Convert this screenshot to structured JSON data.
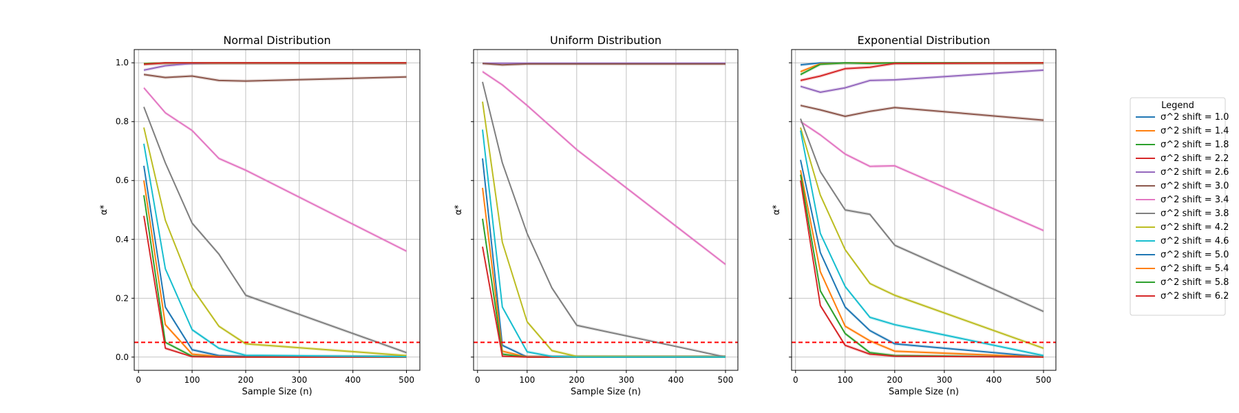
{
  "chart_data": [
    {
      "type": "line",
      "title": "Normal Distribution",
      "xlabel": "Sample Size (n)",
      "ylabel": "α*",
      "xlim": [
        -8,
        525
      ],
      "ylim": [
        -0.045,
        1.045
      ],
      "xticks": [
        0,
        100,
        200,
        300,
        400,
        500
      ],
      "yticks": [
        0.0,
        0.2,
        0.4,
        0.6,
        0.8,
        1.0
      ],
      "xtick_labels": [
        "0",
        "100",
        "200",
        "300",
        "400",
        "500"
      ],
      "ytick_labels": [
        "0.0",
        "0.2",
        "0.4",
        "0.6",
        "0.8",
        "1.0"
      ],
      "grid": true,
      "reference_line": {
        "y": 0.05,
        "color": "#ff0000",
        "style": "dashed"
      },
      "x": [
        10,
        50,
        100,
        150,
        200,
        500
      ],
      "series": [
        {
          "color": "#1f77b4",
          "values": [
            0.65,
            0.17,
            0.025,
            0.005,
            0.002,
            0.0
          ]
        },
        {
          "color": "#ff7f0e",
          "values": [
            0.6,
            0.11,
            0.01,
            0.002,
            0.0,
            0.0
          ]
        },
        {
          "color": "#2ca02c",
          "values": [
            0.55,
            0.05,
            0.003,
            0.0,
            0.0,
            0.0
          ]
        },
        {
          "color": "#d62728",
          "values": [
            0.48,
            0.03,
            0.001,
            0.0,
            0.0,
            0.0
          ]
        },
        {
          "color": "#9467bd",
          "values": [
            0.975,
            0.99,
            0.998,
            1.0,
            1.0,
            1.0
          ]
        },
        {
          "color": "#8c564b",
          "values": [
            0.96,
            0.95,
            0.955,
            0.94,
            0.938,
            0.952
          ]
        },
        {
          "color": "#e377c2",
          "values": [
            0.915,
            0.83,
            0.77,
            0.675,
            0.635,
            0.36
          ]
        },
        {
          "color": "#7f7f7f",
          "values": [
            0.85,
            0.66,
            0.455,
            0.35,
            0.21,
            0.015
          ]
        },
        {
          "color": "#bcbd22",
          "values": [
            0.78,
            0.465,
            0.235,
            0.105,
            0.045,
            0.005
          ]
        },
        {
          "color": "#17becf",
          "values": [
            0.725,
            0.3,
            0.093,
            0.03,
            0.006,
            0.001
          ]
        },
        {
          "color": "#1f77b4",
          "values": [
            0.998,
            1.0,
            1.0,
            1.0,
            1.0,
            1.0
          ]
        },
        {
          "color": "#ff7f0e",
          "values": [
            0.998,
            1.0,
            1.0,
            1.0,
            1.0,
            1.0
          ]
        },
        {
          "color": "#2ca02c",
          "values": [
            0.997,
            1.0,
            1.0,
            1.0,
            1.0,
            1.0
          ]
        },
        {
          "color": "#d62728",
          "values": [
            0.995,
            1.0,
            1.0,
            1.0,
            1.0,
            1.0
          ]
        }
      ]
    },
    {
      "type": "line",
      "title": "Uniform Distribution",
      "xlabel": "Sample Size (n)",
      "ylabel": "α*",
      "xlim": [
        -8,
        525
      ],
      "ylim": [
        -0.045,
        1.045
      ],
      "xticks": [
        0,
        100,
        200,
        300,
        400,
        500
      ],
      "yticks": [
        0.0,
        0.2,
        0.4,
        0.6,
        0.8,
        1.0
      ],
      "xtick_labels": [
        "0",
        "100",
        "200",
        "300",
        "400",
        "500"
      ],
      "ytick_labels": [],
      "grid": true,
      "reference_line": {
        "y": 0.05,
        "color": "#ff0000",
        "style": "dashed"
      },
      "x": [
        10,
        50,
        100,
        150,
        200,
        500
      ],
      "series": [
        {
          "color": "#1f77b4",
          "values": [
            0.675,
            0.04,
            0.0,
            0.0,
            0.0,
            0.0
          ]
        },
        {
          "color": "#ff7f0e",
          "values": [
            0.575,
            0.02,
            0.0,
            0.0,
            0.0,
            0.0
          ]
        },
        {
          "color": "#2ca02c",
          "values": [
            0.47,
            0.01,
            0.0,
            0.0,
            0.0,
            0.0
          ]
        },
        {
          "color": "#d62728",
          "values": [
            0.375,
            0.003,
            0.0,
            0.0,
            0.0,
            0.0
          ]
        },
        {
          "color": "#9467bd",
          "values": [
            0.999,
            0.999,
            0.999,
            0.999,
            0.999,
            0.999
          ]
        },
        {
          "color": "#8c564b",
          "values": [
            0.998,
            0.993,
            0.996,
            0.996,
            0.996,
            0.996
          ]
        },
        {
          "color": "#e377c2",
          "values": [
            0.97,
            0.925,
            0.855,
            0.78,
            0.705,
            0.315
          ]
        },
        {
          "color": "#7f7f7f",
          "values": [
            0.935,
            0.66,
            0.42,
            0.235,
            0.108,
            0.0
          ]
        },
        {
          "color": "#bcbd22",
          "values": [
            0.868,
            0.39,
            0.12,
            0.022,
            0.002,
            0.0
          ]
        },
        {
          "color": "#17becf",
          "values": [
            0.773,
            0.17,
            0.018,
            0.002,
            0.0,
            0.0
          ]
        }
      ]
    },
    {
      "type": "line",
      "title": "Exponential Distribution",
      "xlabel": "Sample Size (n)",
      "ylabel": "α*",
      "xlim": [
        -8,
        525
      ],
      "ylim": [
        -0.045,
        1.045
      ],
      "xticks": [
        0,
        100,
        200,
        300,
        400,
        500
      ],
      "yticks": [
        0.0,
        0.2,
        0.4,
        0.6,
        0.8,
        1.0
      ],
      "xtick_labels": [
        "0",
        "100",
        "200",
        "300",
        "400",
        "500"
      ],
      "ytick_labels": [],
      "grid": true,
      "reference_line": {
        "y": 0.05,
        "color": "#ff0000",
        "style": "dashed"
      },
      "x": [
        10,
        50,
        100,
        150,
        200,
        500
      ],
      "series": [
        {
          "color": "#1f77b4",
          "values": [
            0.67,
            0.355,
            0.17,
            0.09,
            0.045,
            0.0
          ]
        },
        {
          "color": "#ff7f0e",
          "values": [
            0.635,
            0.29,
            0.105,
            0.055,
            0.02,
            0.0
          ]
        },
        {
          "color": "#2ca02c",
          "values": [
            0.62,
            0.225,
            0.08,
            0.015,
            0.005,
            0.0
          ]
        },
        {
          "color": "#d62728",
          "values": [
            0.6,
            0.175,
            0.04,
            0.01,
            0.003,
            0.0
          ]
        },
        {
          "color": "#9467bd",
          "values": [
            0.92,
            0.9,
            0.915,
            0.94,
            0.942,
            0.975
          ]
        },
        {
          "color": "#8c564b",
          "values": [
            0.855,
            0.84,
            0.818,
            0.835,
            0.848,
            0.805
          ]
        },
        {
          "color": "#e377c2",
          "values": [
            0.8,
            0.755,
            0.69,
            0.648,
            0.65,
            0.43
          ]
        },
        {
          "color": "#7f7f7f",
          "values": [
            0.81,
            0.63,
            0.5,
            0.485,
            0.38,
            0.155
          ]
        },
        {
          "color": "#bcbd22",
          "values": [
            0.78,
            0.55,
            0.365,
            0.25,
            0.21,
            0.03
          ]
        },
        {
          "color": "#17becf",
          "values": [
            0.77,
            0.42,
            0.24,
            0.135,
            0.11,
            0.005
          ]
        },
        {
          "color": "#1f77b4",
          "values": [
            0.993,
            1.0,
            1.0,
            1.0,
            1.0,
            1.0
          ]
        },
        {
          "color": "#ff7f0e",
          "values": [
            0.97,
            0.997,
            1.0,
            1.0,
            1.0,
            1.0
          ]
        },
        {
          "color": "#2ca02c",
          "values": [
            0.96,
            0.995,
            1.0,
            0.998,
            1.0,
            1.0
          ]
        },
        {
          "color": "#d62728",
          "values": [
            0.94,
            0.955,
            0.98,
            0.985,
            0.998,
            1.0
          ]
        }
      ]
    }
  ],
  "legend": {
    "title": "Legend",
    "placement": "right",
    "entries": [
      {
        "label": "σ^2 shift = 1.0",
        "color": "#1f77b4"
      },
      {
        "label": "σ^2 shift = 1.4",
        "color": "#ff7f0e"
      },
      {
        "label": "σ^2 shift = 1.8",
        "color": "#2ca02c"
      },
      {
        "label": "σ^2 shift = 2.2",
        "color": "#d62728"
      },
      {
        "label": "σ^2 shift = 2.6",
        "color": "#9467bd"
      },
      {
        "label": "σ^2 shift = 3.0",
        "color": "#8c564b"
      },
      {
        "label": "σ^2 shift = 3.4",
        "color": "#e377c2"
      },
      {
        "label": "σ^2 shift = 3.8",
        "color": "#7f7f7f"
      },
      {
        "label": "σ^2 shift = 4.2",
        "color": "#bcbd22"
      },
      {
        "label": "σ^2 shift = 4.6",
        "color": "#17becf"
      },
      {
        "label": "σ^2 shift = 5.0",
        "color": "#1f77b4"
      },
      {
        "label": "σ^2 shift = 5.4",
        "color": "#ff7f0e"
      },
      {
        "label": "σ^2 shift = 5.8",
        "color": "#2ca02c"
      },
      {
        "label": "σ^2 shift = 6.2",
        "color": "#d62728"
      }
    ]
  }
}
